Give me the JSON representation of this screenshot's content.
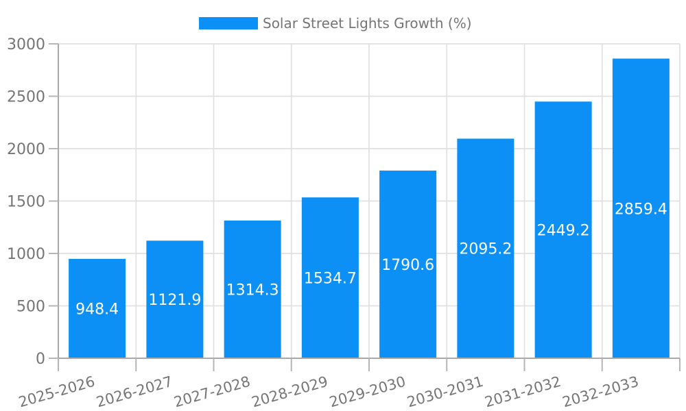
{
  "chart_data": {
    "type": "bar",
    "categories": [
      "2025-2026",
      "2026-2027",
      "2027-2028",
      "2028-2029",
      "2029-2030",
      "2030-2031",
      "2031-2032",
      "2032-2033"
    ],
    "series": [
      {
        "name": "Solar Street Lights Growth (%)",
        "values": [
          948.4,
          1121.9,
          1314.3,
          1534.7,
          1790.6,
          2095.2,
          2449.2,
          2859.4
        ]
      }
    ],
    "value_labels": [
      "948.4",
      "1121.9",
      "1314.3",
      "1534.7",
      "1790.6",
      "2095.2",
      "2449.2",
      "2859.4"
    ],
    "ylim": [
      0,
      3000
    ],
    "ytick_labels": [
      "0",
      "500",
      "1000",
      "1500",
      "2000",
      "2500",
      "3000"
    ],
    "grid": true,
    "legend_position": "top-center",
    "xtick_rotation_deg": -16,
    "colors": {
      "bar": "#0d90f6",
      "grid": "#e0e0e0",
      "axis": "#a9a9a9",
      "tick": "#b5b5b5",
      "tick_text": "#757575",
      "value_text": "#ffffff",
      "background": "#ffffff"
    }
  }
}
